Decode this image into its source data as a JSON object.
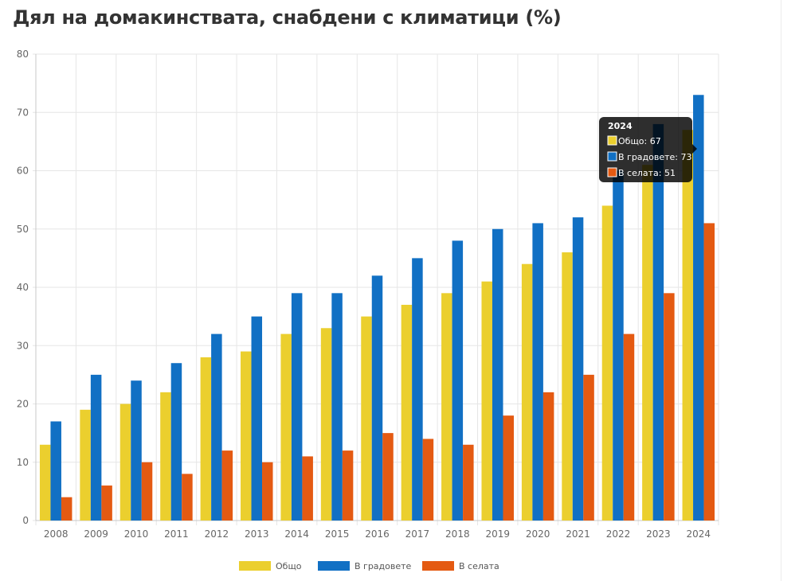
{
  "chart_data": {
    "type": "bar",
    "title": "Дял на домакинствата, снабдени с климатици (%)",
    "categories": [
      "2008",
      "2009",
      "2010",
      "2011",
      "2012",
      "2013",
      "2014",
      "2015",
      "2016",
      "2017",
      "2018",
      "2019",
      "2020",
      "2021",
      "2022",
      "2023",
      "2024"
    ],
    "series": [
      {
        "name": "Общо",
        "color": "#ebcf2e",
        "values": [
          13,
          19,
          20,
          22,
          28,
          29,
          32,
          33,
          35,
          37,
          39,
          41,
          44,
          46,
          54,
          61,
          67
        ]
      },
      {
        "name": "В градовете",
        "color": "#1170c4",
        "values": [
          17,
          25,
          24,
          27,
          32,
          35,
          39,
          39,
          42,
          45,
          48,
          50,
          51,
          52,
          60,
          68,
          73
        ]
      },
      {
        "name": "В селата",
        "color": "#e45a12",
        "values": [
          4,
          6,
          10,
          8,
          12,
          10,
          11,
          12,
          15,
          14,
          13,
          18,
          22,
          25,
          32,
          39,
          51
        ]
      }
    ],
    "ylim": [
      0,
      80
    ],
    "yticks": [
      "0",
      "10",
      "20",
      "30",
      "40",
      "50",
      "60",
      "70",
      "80"
    ],
    "grid": true,
    "legend_position": "bottom",
    "xlabel": "",
    "ylabel": "",
    "tooltip": {
      "title": "2024",
      "rows": [
        "Общо: 67",
        "В градовете: 73",
        "В селата: 51"
      ]
    }
  }
}
